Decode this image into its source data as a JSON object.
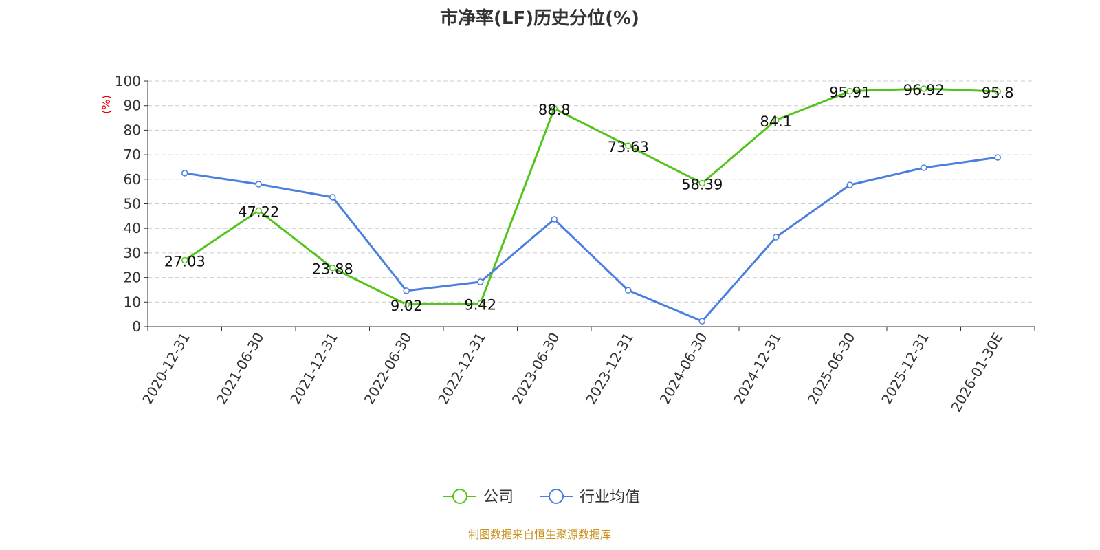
{
  "chart_data": {
    "type": "line",
    "title": "市净率(LF)历史分位(%)",
    "ylabel": "(%)",
    "ylim": [
      0,
      100
    ],
    "yticks": [
      0,
      10,
      20,
      30,
      40,
      50,
      60,
      70,
      80,
      90,
      100
    ],
    "grid": "horizontal dashed",
    "categories": [
      "2020-12-31",
      "2021-06-30",
      "2021-12-31",
      "2022-06-30",
      "2022-12-31",
      "2023-06-30",
      "2023-12-31",
      "2024-06-30",
      "2024-12-31",
      "2025-06-30",
      "2025-12-31",
      "2026-01-30E"
    ],
    "series": [
      {
        "name": "公司",
        "color": "#52c41a",
        "values": [
          27.03,
          47.22,
          23.88,
          9.02,
          9.42,
          88.8,
          73.63,
          58.39,
          84.1,
          95.91,
          96.92,
          95.8
        ],
        "labels": true
      },
      {
        "name": "行业均值",
        "color": "#4a7fe0",
        "values": [
          62.5,
          58.0,
          52.7,
          14.6,
          18.2,
          43.7,
          14.8,
          2.2,
          36.4,
          57.7,
          64.7,
          68.9
        ],
        "labels": false
      }
    ],
    "legend_position": "bottom-center"
  },
  "source": "制图数据来自恒生聚源数据库"
}
